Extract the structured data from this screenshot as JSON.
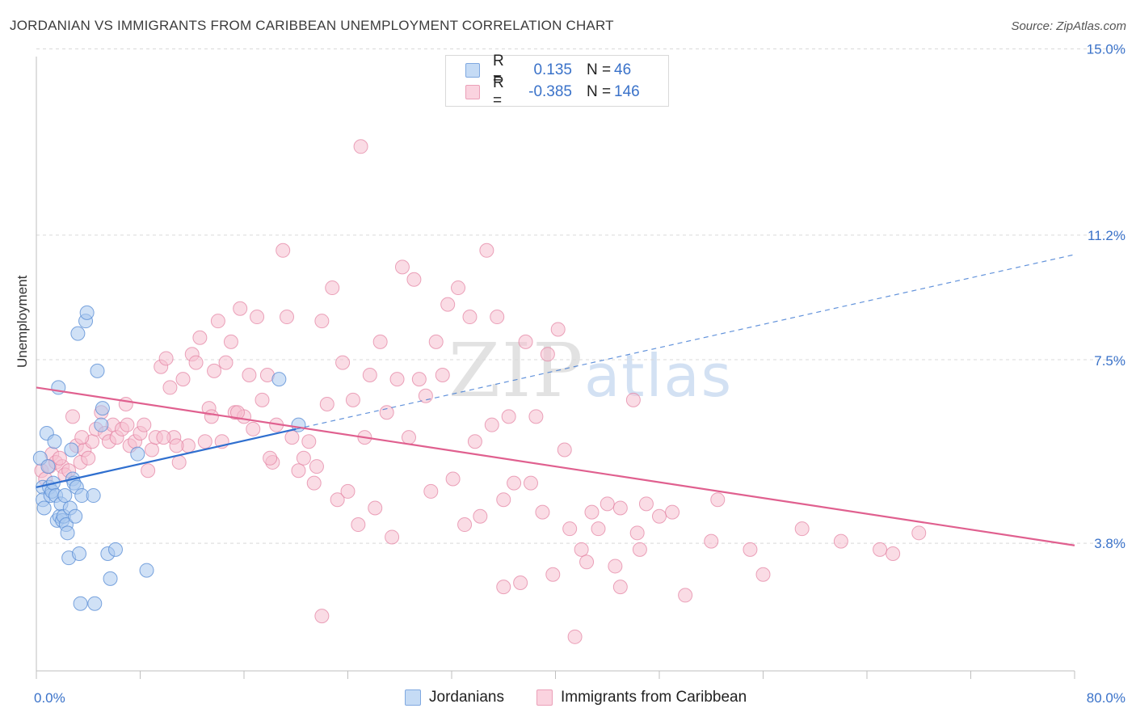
{
  "title": "JORDANIAN VS IMMIGRANTS FROM CARIBBEAN UNEMPLOYMENT CORRELATION CHART",
  "source": "Source: ZipAtlas.com",
  "watermark": {
    "zip": "ZIP",
    "atlas": "atlas"
  },
  "colors": {
    "blue_fill": "#a9c8ef",
    "blue_stroke": "#5b8fd6",
    "blue_line": "#2f6fcf",
    "pink_fill": "#f6bfd0",
    "pink_stroke": "#e37fa0",
    "pink_line": "#e0608f",
    "axis_label": "#3a72c9",
    "grid": "#d9d9d9"
  },
  "legend": {
    "rows": [
      {
        "r_label": "R =",
        "r_value": "0.135",
        "n_label": "N =",
        "n_value": "46"
      },
      {
        "r_label": "R =",
        "r_value": "-0.385",
        "n_label": "N =",
        "n_value": "146"
      }
    ]
  },
  "bottom_legend": [
    "Jordanians",
    "Immigrants from Caribbean"
  ],
  "chart_data": {
    "type": "scatter",
    "title": "JORDANIAN VS IMMIGRANTS FROM CARIBBEAN UNEMPLOYMENT CORRELATION CHART",
    "ylabel": "Unemployment",
    "xlim": [
      0,
      80
    ],
    "ylim": [
      0,
      16
    ],
    "x_tick_labels": [
      "0.0%",
      "80.0%"
    ],
    "y_ticks": [
      3.8,
      7.5,
      11.2,
      15.0
    ],
    "y_tick_labels": [
      "3.8%",
      "7.5%",
      "11.2%",
      "15.0%"
    ],
    "grid": "horizontal dashed",
    "legend_position": "top-center",
    "series": [
      {
        "name": "Jordanians",
        "trend": {
          "x0": 0,
          "y0": 4.8,
          "x1": 20,
          "y1": 6.2,
          "dashed_to_x": 80,
          "dashed_to_y": 10.4
        },
        "points": [
          [
            0.3,
            5.5
          ],
          [
            0.5,
            4.8
          ],
          [
            0.5,
            4.5
          ],
          [
            0.6,
            4.3
          ],
          [
            0.8,
            6.1
          ],
          [
            0.9,
            5.3
          ],
          [
            1.0,
            4.8
          ],
          [
            1.1,
            4.6
          ],
          [
            1.2,
            4.7
          ],
          [
            1.3,
            4.9
          ],
          [
            1.4,
            5.9
          ],
          [
            1.5,
            4.6
          ],
          [
            1.6,
            4.0
          ],
          [
            1.7,
            7.2
          ],
          [
            1.8,
            4.1
          ],
          [
            1.9,
            4.4
          ],
          [
            2.0,
            4.0
          ],
          [
            2.1,
            4.1
          ],
          [
            2.2,
            4.6
          ],
          [
            2.3,
            3.9
          ],
          [
            2.4,
            3.7
          ],
          [
            2.5,
            3.1
          ],
          [
            2.6,
            4.3
          ],
          [
            2.7,
            5.7
          ],
          [
            2.8,
            5.0
          ],
          [
            2.9,
            4.9
          ],
          [
            3.0,
            4.1
          ],
          [
            3.1,
            4.8
          ],
          [
            3.2,
            8.5
          ],
          [
            3.3,
            3.2
          ],
          [
            3.4,
            2.0
          ],
          [
            3.5,
            4.6
          ],
          [
            3.8,
            8.8
          ],
          [
            3.9,
            9.0
          ],
          [
            4.4,
            4.6
          ],
          [
            4.5,
            2.0
          ],
          [
            4.7,
            7.6
          ],
          [
            5.0,
            6.3
          ],
          [
            5.1,
            6.7
          ],
          [
            5.5,
            3.2
          ],
          [
            5.7,
            2.6
          ],
          [
            6.1,
            3.3
          ],
          [
            7.8,
            5.6
          ],
          [
            8.5,
            2.8
          ],
          [
            18.7,
            7.4
          ],
          [
            20.2,
            6.3
          ]
        ]
      },
      {
        "name": "Immigrants from Caribbean",
        "trend": {
          "x0": 0,
          "y0": 7.2,
          "x1": 80,
          "y1": 3.4
        },
        "points": [
          [
            0.4,
            5.2
          ],
          [
            0.7,
            5.0
          ],
          [
            1.0,
            5.3
          ],
          [
            1.2,
            5.6
          ],
          [
            1.5,
            5.4
          ],
          [
            2.0,
            5.3
          ],
          [
            2.2,
            5.1
          ],
          [
            2.5,
            5.2
          ],
          [
            2.8,
            6.5
          ],
          [
            3.1,
            5.8
          ],
          [
            3.4,
            5.4
          ],
          [
            3.7,
            5.7
          ],
          [
            4.0,
            5.5
          ],
          [
            4.3,
            5.9
          ],
          [
            4.6,
            6.2
          ],
          [
            5.0,
            6.6
          ],
          [
            5.3,
            6.1
          ],
          [
            5.6,
            5.9
          ],
          [
            5.9,
            6.3
          ],
          [
            6.2,
            6.0
          ],
          [
            6.6,
            6.2
          ],
          [
            6.9,
            6.8
          ],
          [
            7.2,
            5.8
          ],
          [
            7.6,
            5.9
          ],
          [
            8.0,
            6.1
          ],
          [
            8.3,
            6.3
          ],
          [
            8.6,
            5.2
          ],
          [
            8.9,
            5.7
          ],
          [
            9.2,
            6.0
          ],
          [
            9.6,
            7.7
          ],
          [
            10.0,
            7.9
          ],
          [
            10.3,
            7.2
          ],
          [
            10.6,
            6.0
          ],
          [
            11.0,
            5.4
          ],
          [
            11.3,
            7.4
          ],
          [
            11.7,
            5.8
          ],
          [
            12.0,
            8.0
          ],
          [
            12.3,
            7.8
          ],
          [
            12.6,
            8.4
          ],
          [
            13.0,
            5.9
          ],
          [
            13.3,
            6.7
          ],
          [
            13.7,
            7.6
          ],
          [
            14.0,
            8.8
          ],
          [
            14.3,
            5.9
          ],
          [
            14.6,
            7.8
          ],
          [
            15.0,
            8.3
          ],
          [
            15.3,
            6.6
          ],
          [
            15.7,
            9.1
          ],
          [
            16.0,
            6.5
          ],
          [
            16.4,
            7.5
          ],
          [
            16.7,
            6.2
          ],
          [
            17.0,
            8.9
          ],
          [
            17.4,
            6.9
          ],
          [
            17.8,
            7.5
          ],
          [
            18.2,
            5.4
          ],
          [
            18.5,
            6.3
          ],
          [
            19.0,
            10.5
          ],
          [
            19.3,
            8.9
          ],
          [
            19.7,
            6.0
          ],
          [
            20.2,
            5.2
          ],
          [
            20.6,
            5.5
          ],
          [
            21.0,
            5.9
          ],
          [
            21.4,
            4.9
          ],
          [
            22.0,
            8.8
          ],
          [
            22.4,
            6.8
          ],
          [
            22.8,
            9.6
          ],
          [
            23.2,
            4.5
          ],
          [
            23.6,
            7.8
          ],
          [
            24.0,
            4.7
          ],
          [
            24.4,
            6.9
          ],
          [
            24.8,
            3.9
          ],
          [
            25.3,
            6.0
          ],
          [
            25.7,
            7.5
          ],
          [
            26.1,
            4.3
          ],
          [
            26.5,
            8.3
          ],
          [
            27.0,
            6.6
          ],
          [
            27.4,
            3.6
          ],
          [
            27.8,
            7.4
          ],
          [
            28.2,
            10.1
          ],
          [
            28.7,
            6.0
          ],
          [
            29.1,
            9.8
          ],
          [
            29.5,
            7.4
          ],
          [
            30.0,
            7.0
          ],
          [
            30.4,
            4.7
          ],
          [
            30.8,
            8.3
          ],
          [
            31.3,
            7.5
          ],
          [
            31.7,
            9.2
          ],
          [
            32.1,
            5.0
          ],
          [
            32.5,
            9.6
          ],
          [
            33.0,
            3.9
          ],
          [
            33.4,
            8.9
          ],
          [
            33.8,
            5.9
          ],
          [
            34.2,
            4.1
          ],
          [
            34.7,
            10.5
          ],
          [
            35.1,
            6.3
          ],
          [
            35.5,
            8.9
          ],
          [
            36.0,
            4.5
          ],
          [
            36.4,
            6.5
          ],
          [
            36.8,
            4.9
          ],
          [
            37.3,
            2.5
          ],
          [
            37.7,
            8.3
          ],
          [
            38.1,
            4.9
          ],
          [
            38.5,
            6.5
          ],
          [
            39.0,
            4.2
          ],
          [
            39.4,
            8.0
          ],
          [
            39.8,
            2.7
          ],
          [
            40.2,
            8.6
          ],
          [
            40.7,
            5.7
          ],
          [
            41.1,
            3.8
          ],
          [
            41.5,
            1.2
          ],
          [
            42.0,
            3.3
          ],
          [
            42.4,
            3.0
          ],
          [
            42.8,
            4.2
          ],
          [
            43.3,
            3.8
          ],
          [
            44.0,
            4.4
          ],
          [
            44.6,
            2.9
          ],
          [
            45.0,
            4.3
          ],
          [
            46.0,
            6.9
          ],
          [
            46.3,
            3.7
          ],
          [
            46.5,
            3.3
          ],
          [
            47.0,
            4.4
          ],
          [
            48.0,
            4.1
          ],
          [
            49.0,
            4.2
          ],
          [
            50.0,
            2.2
          ],
          [
            52.0,
            3.5
          ],
          [
            52.5,
            4.5
          ],
          [
            55.0,
            3.3
          ],
          [
            56.0,
            2.7
          ],
          [
            59.0,
            3.8
          ],
          [
            62.0,
            3.5
          ],
          [
            65.0,
            3.3
          ],
          [
            66.0,
            3.2
          ],
          [
            68.0,
            3.7
          ],
          [
            22.0,
            1.7
          ],
          [
            36.0,
            2.4
          ],
          [
            45.0,
            2.4
          ],
          [
            25.0,
            13.0
          ],
          [
            21.6,
            5.3
          ],
          [
            18.0,
            5.5
          ],
          [
            13.5,
            6.5
          ],
          [
            9.8,
            6.0
          ],
          [
            7.0,
            6.3
          ],
          [
            3.5,
            6.0
          ],
          [
            1.8,
            5.5
          ],
          [
            10.8,
            5.8
          ],
          [
            15.5,
            6.6
          ]
        ]
      }
    ]
  }
}
